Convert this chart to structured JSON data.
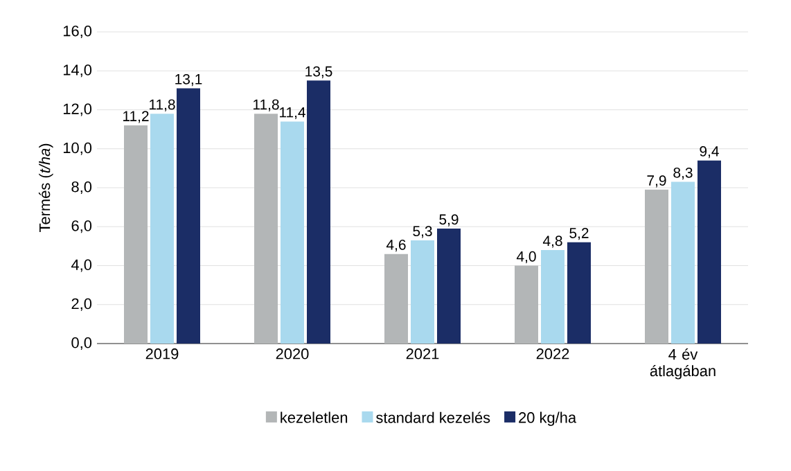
{
  "chart_data": {
    "type": "bar",
    "ylabel": "Termés (*t/ha*)",
    "categories": [
      "2019",
      "2020",
      "2021",
      "2022",
      "4 év átlagában"
    ],
    "series": [
      {
        "name": "kezeletlen",
        "color": "#b3b6b7",
        "values": [
          11.2,
          11.8,
          4.6,
          4.0,
          7.9
        ],
        "value_labels": [
          "11,2",
          "11,8",
          "4,6",
          "4,0",
          "7,9"
        ]
      },
      {
        "name": "standard kezelés",
        "color": "#a9d9ee",
        "values": [
          11.8,
          11.4,
          5.3,
          4.8,
          8.3
        ],
        "value_labels": [
          "11,8",
          "11,4",
          "5,3",
          "4,8",
          "8,3"
        ]
      },
      {
        "name": "20 kg/ha",
        "color": "#1b2d66",
        "values": [
          13.1,
          13.5,
          5.9,
          5.2,
          9.4
        ],
        "value_labels": [
          "13,1",
          "13,5",
          "5,9",
          "5,2",
          "9,4"
        ]
      }
    ],
    "ylim": [
      0,
      16
    ],
    "yticks": [
      {
        "value": 0,
        "label": "0,0"
      },
      {
        "value": 2,
        "label": "2,0"
      },
      {
        "value": 4,
        "label": "4,0"
      },
      {
        "value": 6,
        "label": "6,0"
      },
      {
        "value": 8,
        "label": "8,0"
      },
      {
        "value": 10,
        "label": "10,0"
      },
      {
        "value": 12,
        "label": "12,0"
      },
      {
        "value": 14,
        "label": "14,0"
      },
      {
        "value": 16,
        "label": "16,0"
      }
    ],
    "grid": "y",
    "legend": "bottom"
  }
}
